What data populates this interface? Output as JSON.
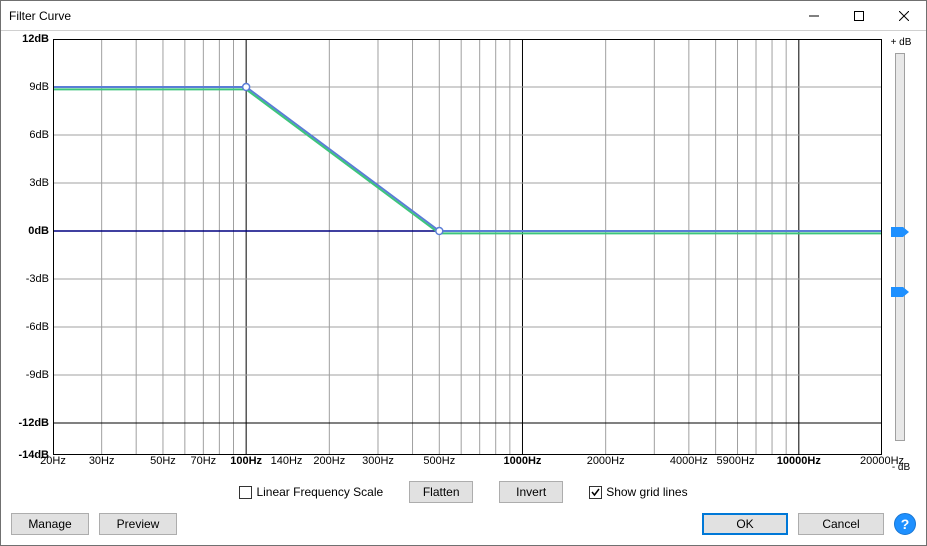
{
  "window": {
    "title": "Filter Curve"
  },
  "chart": {
    "type": "line",
    "x_scale": "log",
    "y_scale": "linear",
    "x_min_hz": 20,
    "x_max_hz": 20000,
    "y_min_db": -14,
    "y_max_db": 12,
    "background_color": "#ffffff",
    "grid_color": "#a0a0a0",
    "grid_major_color": "#000000",
    "zero_line_color": "#000080",
    "y_ticks": [
      {
        "db": 12,
        "label": "12dB",
        "bold": true
      },
      {
        "db": 9,
        "label": "9dB",
        "bold": false
      },
      {
        "db": 6,
        "label": "6dB",
        "bold": false
      },
      {
        "db": 3,
        "label": "3dB",
        "bold": false
      },
      {
        "db": 0,
        "label": "0dB",
        "bold": true
      },
      {
        "db": -3,
        "label": "-3dB",
        "bold": false
      },
      {
        "db": -6,
        "label": "-6dB",
        "bold": false
      },
      {
        "db": -9,
        "label": "-9dB",
        "bold": false
      },
      {
        "db": -12,
        "label": "-12dB",
        "bold": true
      },
      {
        "db": -14,
        "label": "-14dB",
        "bold": true
      }
    ],
    "x_ticks": [
      {
        "hz": 20,
        "label": "20Hz",
        "bold": false
      },
      {
        "hz": 30,
        "label": "30Hz",
        "bold": false
      },
      {
        "hz": 50,
        "label": "50Hz",
        "bold": false
      },
      {
        "hz": 70,
        "label": "70Hz",
        "bold": false
      },
      {
        "hz": 100,
        "label": "100Hz",
        "bold": true
      },
      {
        "hz": 140,
        "label": "140Hz",
        "bold": false
      },
      {
        "hz": 200,
        "label": "200Hz",
        "bold": false
      },
      {
        "hz": 300,
        "label": "300Hz",
        "bold": false
      },
      {
        "hz": 500,
        "label": "500Hz",
        "bold": false
      },
      {
        "hz": 1000,
        "label": "1000Hz",
        "bold": true
      },
      {
        "hz": 2000,
        "label": "2000Hz",
        "bold": false
      },
      {
        "hz": 4000,
        "label": "4000Hz",
        "bold": false
      },
      {
        "hz": 5900,
        "label": "5900Hz",
        "bold": false
      },
      {
        "hz": 10000,
        "label": "10000Hz",
        "bold": true
      },
      {
        "hz": 20000,
        "label": "20000Hz",
        "bold": false
      }
    ],
    "x_grid_minor": [
      20,
      30,
      40,
      50,
      60,
      70,
      80,
      90,
      100,
      200,
      300,
      400,
      500,
      600,
      700,
      800,
      900,
      1000,
      2000,
      3000,
      4000,
      5000,
      6000,
      7000,
      8000,
      9000,
      10000,
      20000
    ],
    "curves": [
      {
        "name": "curve-blue",
        "color": "#5a7dd6",
        "width": 2,
        "points": [
          {
            "hz": 20,
            "db": 9.0
          },
          {
            "hz": 100,
            "db": 9.0
          },
          {
            "hz": 500,
            "db": 0.0
          },
          {
            "hz": 20000,
            "db": 0.0
          }
        ]
      },
      {
        "name": "curve-green",
        "color": "#3cc47c",
        "width": 2,
        "points": [
          {
            "hz": 20,
            "db": 8.85
          },
          {
            "hz": 100,
            "db": 8.85
          },
          {
            "hz": 500,
            "db": -0.15
          },
          {
            "hz": 20000,
            "db": -0.15
          }
        ]
      }
    ],
    "control_points": [
      {
        "hz": 100,
        "db": 9.0
      },
      {
        "hz": 500,
        "db": 0.0
      }
    ],
    "control_point_color": "#ffffff",
    "control_point_border": "#5a7dd6"
  },
  "slider": {
    "label_top": "+ dB",
    "label_bottom": "- dB",
    "thumb1_db": 0,
    "thumb2_db": -4,
    "thumb_color": "#1e90ff"
  },
  "options": {
    "linear_scale": {
      "label": "Linear Frequency Scale",
      "checked": false
    },
    "flatten": {
      "label": "Flatten"
    },
    "invert": {
      "label": "Invert"
    },
    "show_grid": {
      "label": "Show grid lines",
      "checked": true
    }
  },
  "buttons": {
    "manage": "Manage",
    "preview": "Preview",
    "ok": "OK",
    "cancel": "Cancel",
    "help": "?"
  }
}
